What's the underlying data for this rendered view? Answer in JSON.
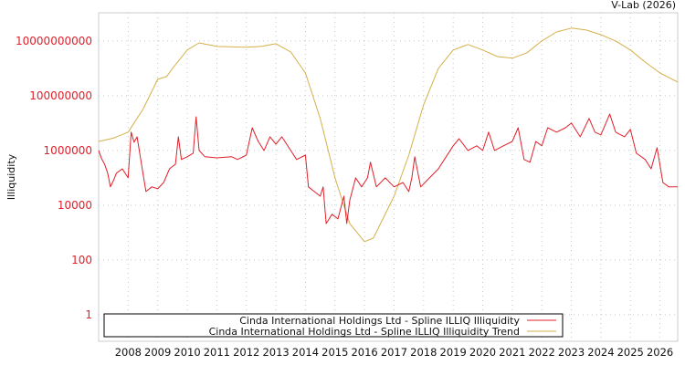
{
  "chart_data": {
    "type": "line",
    "title": "V-Lab (2026)",
    "xlabel": "",
    "ylabel": "Illiquidity",
    "y_scale": "log10",
    "y_tick_values": [
      1,
      100,
      10000,
      1000000,
      100000000,
      10000000000
    ],
    "y_tick_labels": [
      "1",
      "100",
      "10000",
      "1000000",
      "100000000",
      "10000000000"
    ],
    "x_tick_labels": [
      "2008",
      "2009",
      "2010",
      "2011",
      "2012",
      "2013",
      "2014",
      "2015",
      "2016",
      "2017",
      "2018",
      "2019",
      "2020",
      "2021",
      "2022",
      "2023",
      "2024",
      "2025",
      "2026"
    ],
    "xlim": [
      2007.0,
      2026.6
    ],
    "ylim_log10": [
      -0.97,
      11.03
    ],
    "grid": true,
    "legend_position": "bottom-left",
    "series": [
      {
        "name": "Cinda International Holdings Ltd - Spline ILLIQ Illiquidity",
        "color": "#e0202a",
        "x": [
          2007.0,
          2007.1,
          2007.2,
          2007.3,
          2007.4,
          2007.5,
          2007.6,
          2007.8,
          2008.0,
          2008.1,
          2008.2,
          2008.3,
          2008.5,
          2008.6,
          2008.8,
          2009.0,
          2009.2,
          2009.4,
          2009.6,
          2009.7,
          2009.8,
          2010.0,
          2010.2,
          2010.3,
          2010.4,
          2010.6,
          2011.0,
          2011.5,
          2011.7,
          2012.0,
          2012.2,
          2012.4,
          2012.6,
          2012.8,
          2013.0,
          2013.2,
          2013.5,
          2013.7,
          2014.0,
          2014.1,
          2014.3,
          2014.5,
          2014.6,
          2014.7,
          2014.9,
          2015.1,
          2015.3,
          2015.4,
          2015.5,
          2015.7,
          2015.9,
          2016.1,
          2016.2,
          2016.4,
          2016.7,
          2017.0,
          2017.3,
          2017.5,
          2017.6,
          2017.7,
          2017.9,
          2018.2,
          2018.5,
          2018.7,
          2019.0,
          2019.2,
          2019.5,
          2019.8,
          2020.0,
          2020.2,
          2020.4,
          2020.7,
          2021.0,
          2021.2,
          2021.4,
          2021.6,
          2021.8,
          2022.0,
          2022.2,
          2022.5,
          2022.8,
          2023.0,
          2023.3,
          2023.6,
          2023.8,
          2024.0,
          2024.3,
          2024.5,
          2024.8,
          2025.0,
          2025.2,
          2025.5,
          2025.7,
          2025.9,
          2026.1,
          2026.3,
          2026.6
        ],
        "y_log10": [
          6.0,
          5.7,
          5.5,
          5.2,
          4.67,
          4.9,
          5.17,
          5.33,
          5.0,
          6.67,
          6.3,
          6.5,
          5.17,
          4.5,
          4.67,
          4.6,
          4.83,
          5.33,
          5.5,
          6.5,
          5.67,
          5.77,
          5.9,
          7.23,
          6.0,
          5.77,
          5.73,
          5.77,
          5.67,
          5.83,
          6.83,
          6.33,
          6.0,
          6.5,
          6.23,
          6.5,
          6.0,
          5.67,
          5.83,
          4.67,
          4.5,
          4.33,
          4.67,
          3.33,
          3.67,
          3.5,
          4.33,
          3.33,
          4.17,
          5.0,
          4.67,
          5.0,
          5.57,
          4.67,
          5.0,
          4.67,
          4.83,
          4.5,
          5.0,
          5.77,
          4.67,
          5.0,
          5.33,
          5.67,
          6.17,
          6.43,
          6.0,
          6.17,
          6.0,
          6.67,
          6.0,
          6.17,
          6.33,
          6.83,
          5.67,
          5.57,
          6.33,
          6.17,
          6.83,
          6.67,
          6.83,
          7.0,
          6.5,
          7.17,
          6.67,
          6.57,
          7.33,
          6.67,
          6.5,
          6.77,
          5.9,
          5.67,
          5.33,
          6.1,
          4.83,
          4.67,
          4.67
        ]
      },
      {
        "name": "Cinda International Holdings Ltd - Spline ILLIQ Illiquidity Trend",
        "color": "#d4b04a",
        "x": [
          2007.0,
          2007.5,
          2008.0,
          2008.5,
          2009.0,
          2009.3,
          2009.5,
          2010.0,
          2010.4,
          2011.0,
          2012.0,
          2012.5,
          2013.0,
          2013.5,
          2014.0,
          2014.5,
          2015.0,
          2015.5,
          2016.0,
          2016.3,
          2017.0,
          2017.5,
          2018.0,
          2018.5,
          2019.0,
          2019.5,
          2020.0,
          2020.5,
          2021.0,
          2021.5,
          2022.0,
          2022.5,
          2023.0,
          2023.5,
          2024.0,
          2024.5,
          2025.0,
          2025.5,
          2026.0,
          2026.6
        ],
        "y_log10": [
          6.33,
          6.45,
          6.67,
          7.5,
          8.6,
          8.7,
          9.0,
          9.67,
          9.93,
          9.8,
          9.77,
          9.8,
          9.9,
          9.6,
          8.83,
          7.17,
          5.0,
          3.33,
          2.67,
          2.8,
          4.33,
          5.83,
          7.67,
          9.0,
          9.67,
          9.87,
          9.67,
          9.43,
          9.37,
          9.57,
          10.0,
          10.33,
          10.47,
          10.4,
          10.23,
          10.0,
          9.67,
          9.23,
          8.83,
          8.5
        ]
      }
    ]
  }
}
